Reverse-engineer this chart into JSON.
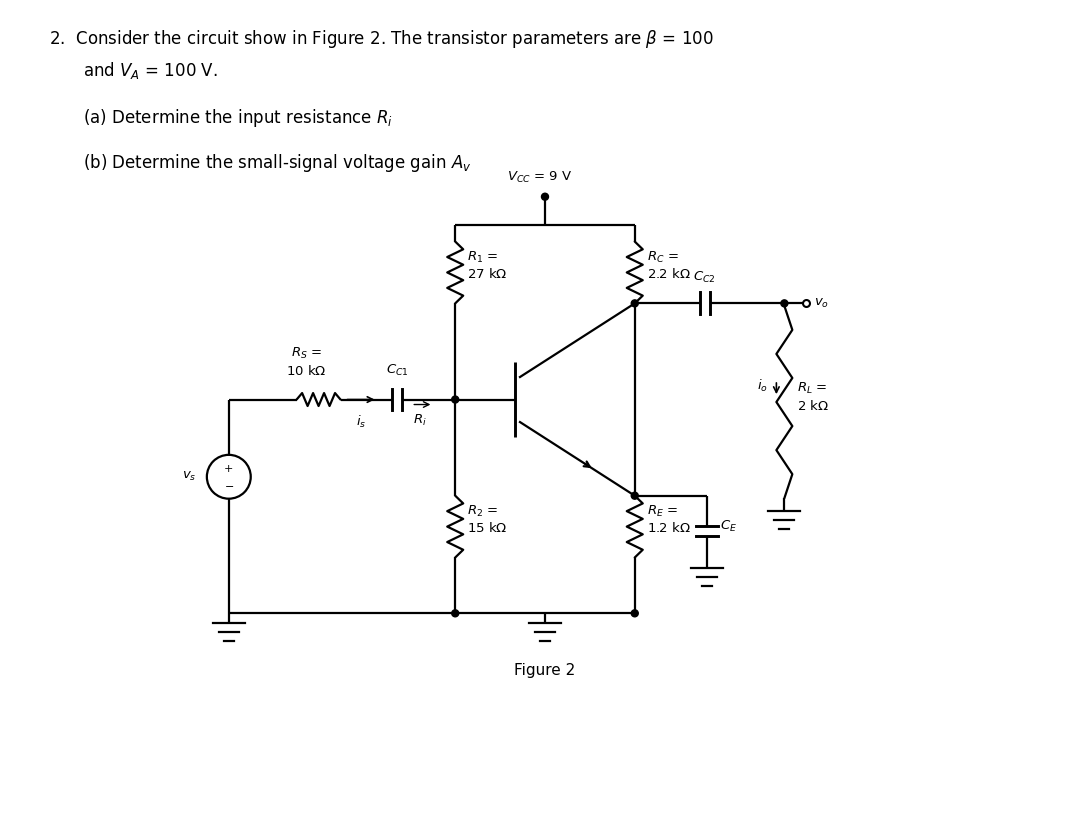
{
  "bg_color": "#ffffff",
  "lw": 1.6,
  "fig_width": 10.79,
  "fig_height": 8.19,
  "dpi": 100
}
